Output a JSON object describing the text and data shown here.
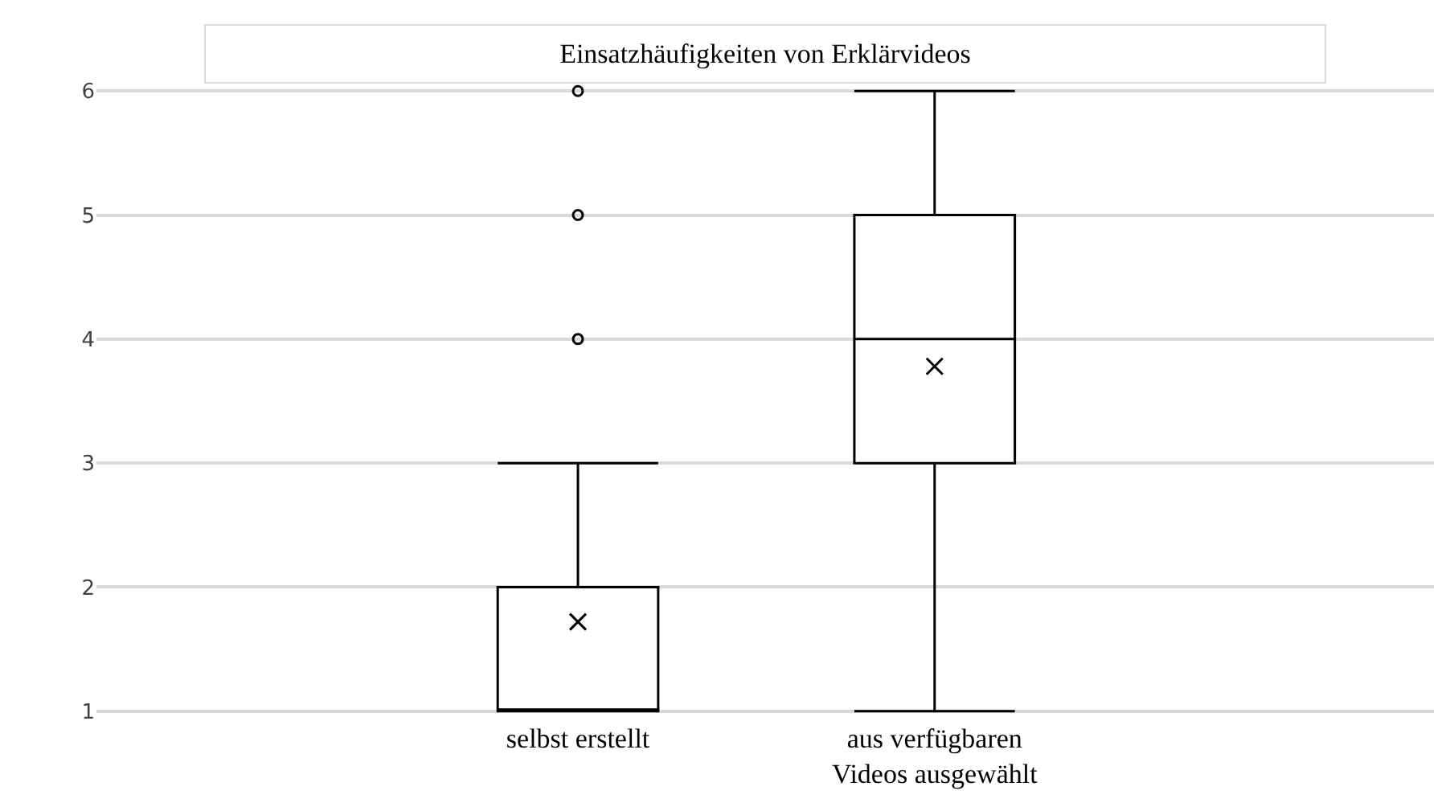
{
  "chart_data": {
    "type": "box",
    "title": "Einsatzhäufigkeiten von Erklärvideos",
    "categories": [
      "selbst erstellt",
      "aus verfügbaren\nVideos ausgewählt"
    ],
    "boxes": [
      {
        "low": 1,
        "q1": 1,
        "median": 1,
        "q3": 2,
        "high": 3,
        "mean": 1.72,
        "outliers": [
          4,
          5,
          6
        ]
      },
      {
        "low": 1,
        "q1": 3,
        "median": 4,
        "q3": 5,
        "high": 6,
        "mean": 3.78
      }
    ],
    "color": "#000000",
    "ylim": [
      1,
      6
    ],
    "yticks": [
      1,
      2,
      3,
      4,
      5,
      6
    ],
    "grid": "y"
  }
}
